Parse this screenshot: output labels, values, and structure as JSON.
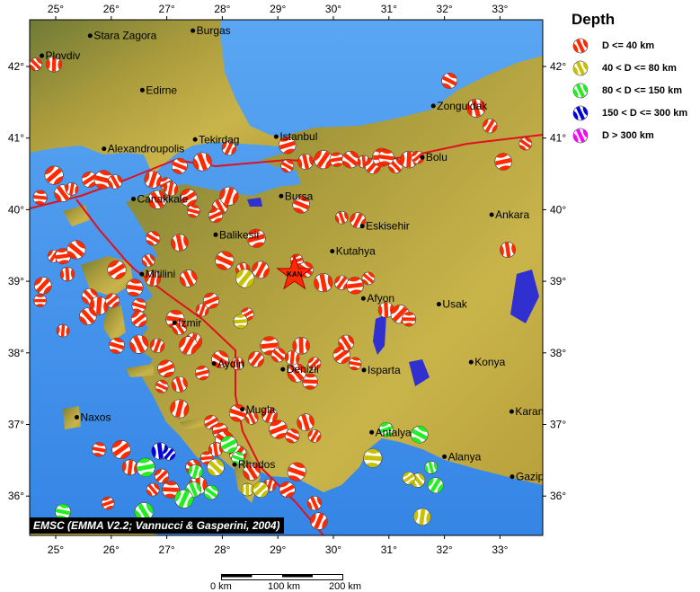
{
  "legend": {
    "title": "Depth",
    "items": [
      {
        "label": "D <= 40 km",
        "color": "#ff2a00"
      },
      {
        "label": "40 < D <= 80 km",
        "color": "#c8c000"
      },
      {
        "label": "80 < D <= 150 km",
        "color": "#22ee22"
      },
      {
        "label": "150 < D <= 300 km",
        "color": "#0000dd"
      },
      {
        "label": "D > 300 km",
        "color": "#ff00ff"
      }
    ]
  },
  "credit": "EMSC (EMMA V2.2; Vannucci & Gasperini, 2004)",
  "scale_bar": {
    "labels": [
      "0 km",
      "100 km",
      "200 km"
    ]
  },
  "axes": {
    "lon_ticks": [
      "25°",
      "26°",
      "27°",
      "28°",
      "29°",
      "30°",
      "31°",
      "32°",
      "33°"
    ],
    "lat_ticks": [
      "42°",
      "41°",
      "40°",
      "39°",
      "38°",
      "37°",
      "36°"
    ]
  },
  "epicenter": {
    "label": "KAN",
    "lon": 29.3,
    "lat": 39.1
  },
  "colors": {
    "sea": "#3f8fe8",
    "land": "#b8a63a",
    "lake": "#3030d0",
    "fault": "#e01020"
  },
  "cities": [
    {
      "name": "Stara Zagora",
      "lon": 25.62,
      "lat": 42.43
    },
    {
      "name": "Burgas",
      "lon": 27.47,
      "lat": 42.5
    },
    {
      "name": "Plovdiv",
      "lon": 24.75,
      "lat": 42.15
    },
    {
      "name": "Edirne",
      "lon": 26.56,
      "lat": 41.67
    },
    {
      "name": "Alexandroupolis",
      "lon": 25.87,
      "lat": 40.85
    },
    {
      "name": "Tekirdag",
      "lon": 27.51,
      "lat": 40.98
    },
    {
      "name": "Istanbul",
      "lon": 28.97,
      "lat": 41.02
    },
    {
      "name": "Zonguldak",
      "lon": 31.8,
      "lat": 41.45
    },
    {
      "name": "Bolu",
      "lon": 31.6,
      "lat": 40.73
    },
    {
      "name": "Canakkale",
      "lon": 26.4,
      "lat": 40.15
    },
    {
      "name": "Bursa",
      "lon": 29.06,
      "lat": 40.19
    },
    {
      "name": "Ankara",
      "lon": 32.85,
      "lat": 39.93
    },
    {
      "name": "Balikesir",
      "lon": 27.88,
      "lat": 39.65
    },
    {
      "name": "Eskisehir",
      "lon": 30.52,
      "lat": 39.77
    },
    {
      "name": "Kutahya",
      "lon": 29.98,
      "lat": 39.42
    },
    {
      "name": "Mitilini",
      "lon": 26.55,
      "lat": 39.1
    },
    {
      "name": "Izmir",
      "lon": 27.14,
      "lat": 38.42
    },
    {
      "name": "Afyon",
      "lon": 30.54,
      "lat": 38.76
    },
    {
      "name": "Usak",
      "lon": 31.9,
      "lat": 38.68
    },
    {
      "name": "Aydin",
      "lon": 27.85,
      "lat": 37.85
    },
    {
      "name": "Denizli",
      "lon": 29.09,
      "lat": 37.77
    },
    {
      "name": "Isparta",
      "lon": 30.55,
      "lat": 37.76
    },
    {
      "name": "Konya",
      "lon": 32.48,
      "lat": 37.87
    },
    {
      "name": "Mugla",
      "lon": 28.36,
      "lat": 37.21
    },
    {
      "name": "Naxos",
      "lon": 25.38,
      "lat": 37.1
    },
    {
      "name": "Karaman",
      "lon": 33.21,
      "lat": 37.18
    },
    {
      "name": "Antalya",
      "lon": 30.69,
      "lat": 36.89
    },
    {
      "name": "Alanya",
      "lon": 32.0,
      "lat": 36.55
    },
    {
      "name": "Rhodos",
      "lon": 28.22,
      "lat": 36.44
    },
    {
      "name": "Gazipasa",
      "lon": 33.22,
      "lat": 36.27
    }
  ],
  "events": [
    [
      24.64,
      42.03,
      1
    ],
    [
      24.97,
      42.03,
      1
    ],
    [
      24.97,
      40.48,
      1
    ],
    [
      24.72,
      40.17,
      1
    ],
    [
      25.13,
      40.23,
      1
    ],
    [
      25.29,
      40.29,
      1
    ],
    [
      25.61,
      40.42,
      1
    ],
    [
      25.86,
      40.42,
      1
    ],
    [
      26.07,
      40.39,
      1
    ],
    [
      26.75,
      40.42,
      1
    ],
    [
      26.99,
      40.36,
      1
    ],
    [
      27.23,
      40.61,
      1
    ],
    [
      27.64,
      40.67,
      1
    ],
    [
      28.12,
      40.86,
      1
    ],
    [
      29.17,
      40.9,
      1
    ],
    [
      29.17,
      40.61,
      1
    ],
    [
      29.5,
      40.67,
      1
    ],
    [
      29.82,
      40.7,
      1
    ],
    [
      30.06,
      40.7,
      1
    ],
    [
      30.31,
      40.7,
      1
    ],
    [
      30.55,
      40.67,
      1
    ],
    [
      30.71,
      40.61,
      1
    ],
    [
      30.87,
      40.73,
      1
    ],
    [
      31.12,
      40.61,
      1
    ],
    [
      31.36,
      40.7,
      1
    ],
    [
      31.52,
      40.73,
      1
    ],
    [
      30.95,
      40.73,
      1
    ],
    [
      26.83,
      40.14,
      1
    ],
    [
      27.07,
      40.29,
      1
    ],
    [
      27.39,
      40.17,
      1
    ],
    [
      27.48,
      39.98,
      1
    ],
    [
      27.96,
      40.04,
      1
    ],
    [
      28.12,
      40.19,
      1
    ],
    [
      27.88,
      39.92,
      1
    ],
    [
      29.42,
      40.07,
      1
    ],
    [
      30.15,
      39.89,
      1
    ],
    [
      30.44,
      39.85,
      1
    ],
    [
      28.61,
      39.6,
      1
    ],
    [
      26.75,
      39.6,
      1
    ],
    [
      27.23,
      39.54,
      1
    ],
    [
      24.97,
      39.35,
      1
    ],
    [
      25.13,
      39.35,
      1
    ],
    [
      25.37,
      39.44,
      1
    ],
    [
      25.21,
      39.1,
      1
    ],
    [
      24.77,
      38.94,
      1
    ],
    [
      24.72,
      38.73,
      1
    ],
    [
      25.61,
      38.79,
      1
    ],
    [
      25.78,
      38.66,
      1
    ],
    [
      26.02,
      38.73,
      1
    ],
    [
      26.42,
      38.91,
      1
    ],
    [
      26.67,
      39.29,
      1
    ],
    [
      26.75,
      39.04,
      1
    ],
    [
      26.1,
      39.16,
      1
    ],
    [
      26.5,
      38.66,
      1
    ],
    [
      27.39,
      39.04,
      1
    ],
    [
      27.64,
      38.6,
      1
    ],
    [
      27.8,
      38.73,
      1
    ],
    [
      28.04,
      39.29,
      1
    ],
    [
      28.37,
      39.16,
      1
    ],
    [
      28.69,
      39.16,
      1
    ],
    [
      29.34,
      39.29,
      1
    ],
    [
      29.5,
      39.16,
      1
    ],
    [
      29.82,
      38.98,
      1
    ],
    [
      30.15,
      38.98,
      1
    ],
    [
      30.39,
      38.94,
      1
    ],
    [
      30.63,
      39.04,
      1
    ],
    [
      30.95,
      38.6,
      1
    ],
    [
      31.2,
      38.54,
      1
    ],
    [
      31.36,
      38.47,
      1
    ],
    [
      25.58,
      38.51,
      1
    ],
    [
      25.13,
      38.31,
      1
    ],
    [
      26.5,
      38.47,
      1
    ],
    [
      27.15,
      38.47,
      1
    ],
    [
      27.23,
      38.35,
      1
    ],
    [
      27.48,
      38.16,
      1
    ],
    [
      28.45,
      38.54,
      1
    ],
    [
      26.1,
      38.1,
      1
    ],
    [
      26.5,
      38.12,
      1
    ],
    [
      26.83,
      38.1,
      1
    ],
    [
      26.99,
      37.78,
      1
    ],
    [
      26.91,
      37.53,
      1
    ],
    [
      27.23,
      37.56,
      1
    ],
    [
      27.39,
      38.1,
      1
    ],
    [
      27.64,
      37.72,
      1
    ],
    [
      27.96,
      37.91,
      1
    ],
    [
      28.28,
      37.85,
      1
    ],
    [
      28.61,
      37.91,
      1
    ],
    [
      28.85,
      38.1,
      1
    ],
    [
      29.01,
      37.97,
      1
    ],
    [
      29.42,
      38.1,
      1
    ],
    [
      29.66,
      37.85,
      1
    ],
    [
      29.58,
      37.6,
      1
    ],
    [
      29.34,
      37.72,
      1
    ],
    [
      29.26,
      37.93,
      1
    ],
    [
      30.15,
      37.97,
      1
    ],
    [
      30.39,
      37.85,
      1
    ],
    [
      30.23,
      38.14,
      1
    ],
    [
      27.23,
      37.22,
      1
    ],
    [
      27.8,
      37.03,
      1
    ],
    [
      28.28,
      37.16,
      1
    ],
    [
      28.53,
      37.09,
      1
    ],
    [
      28.85,
      37.13,
      1
    ],
    [
      29.01,
      36.93,
      1
    ],
    [
      29.26,
      36.84,
      1
    ],
    [
      29.5,
      37.03,
      1
    ],
    [
      29.66,
      36.84,
      1
    ],
    [
      27.96,
      36.91,
      1
    ],
    [
      28.04,
      36.78,
      1
    ],
    [
      27.88,
      36.65,
      1
    ],
    [
      28.28,
      36.59,
      1
    ],
    [
      27.72,
      36.53,
      1
    ],
    [
      27.48,
      36.4,
      1
    ],
    [
      27.56,
      36.15,
      1
    ],
    [
      26.91,
      36.28,
      1
    ],
    [
      27.07,
      36.09,
      1
    ],
    [
      26.75,
      36.09,
      1
    ],
    [
      26.34,
      36.4,
      1
    ],
    [
      26.18,
      36.65,
      1
    ],
    [
      25.78,
      36.65,
      1
    ],
    [
      28.53,
      36.34,
      1
    ],
    [
      28.85,
      36.15,
      1
    ],
    [
      29.17,
      36.09,
      1
    ],
    [
      29.34,
      36.34,
      1
    ],
    [
      29.66,
      35.9,
      1
    ],
    [
      29.74,
      35.65,
      1
    ],
    [
      25.94,
      35.9,
      1
    ],
    [
      32.09,
      41.8,
      1
    ],
    [
      32.57,
      41.42,
      1
    ],
    [
      32.82,
      41.17,
      1
    ],
    [
      33.06,
      40.67,
      1
    ],
    [
      33.46,
      40.92,
      1
    ],
    [
      33.14,
      39.44,
      1
    ],
    [
      28.41,
      39.04,
      2
    ],
    [
      28.33,
      38.44,
      2
    ],
    [
      27.88,
      36.4,
      2
    ],
    [
      28.45,
      36.09,
      2
    ],
    [
      28.69,
      36.09,
      2
    ],
    [
      30.71,
      36.53,
      2
    ],
    [
      31.52,
      36.22,
      2
    ],
    [
      31.6,
      35.71,
      2
    ],
    [
      31.36,
      36.25,
      2
    ],
    [
      25.13,
      35.78,
      3
    ],
    [
      26.59,
      35.78,
      3
    ],
    [
      27.52,
      36.34,
      3
    ],
    [
      28.12,
      36.72,
      3
    ],
    [
      28.28,
      36.53,
      3
    ],
    [
      27.48,
      36.09,
      3
    ],
    [
      27.31,
      35.96,
      3
    ],
    [
      30.95,
      36.93,
      3
    ],
    [
      31.55,
      36.86,
      3
    ],
    [
      31.76,
      36.4,
      3
    ],
    [
      31.84,
      36.15,
      3
    ],
    [
      26.62,
      36.4,
      3
    ],
    [
      27.8,
      36.05,
      3
    ],
    [
      26.88,
      36.63,
      4
    ],
    [
      27.04,
      36.59,
      4
    ]
  ]
}
